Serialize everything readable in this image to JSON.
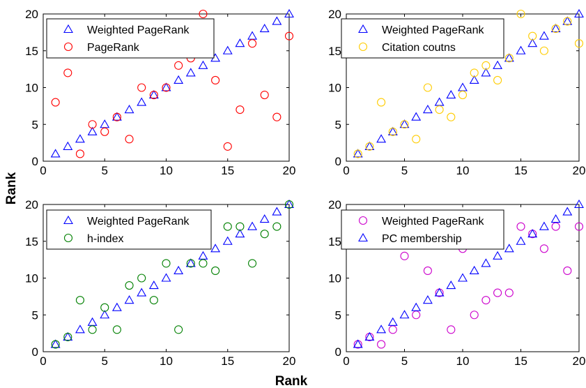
{
  "figure": {
    "xlabel": "Rank",
    "ylabel": "Rank"
  },
  "chart_data": [
    {
      "type": "scatter",
      "xlim": [
        0,
        20
      ],
      "ylim": [
        0,
        20
      ],
      "xticks": [
        "0",
        "5",
        "10",
        "15",
        "20"
      ],
      "yticks": [
        "0",
        "5",
        "10",
        "15",
        "20"
      ],
      "legend_position": "top-left",
      "series": [
        {
          "name": "Weighted PageRank",
          "marker": "triangle",
          "color": "#0000ff",
          "x": [
            1,
            2,
            3,
            4,
            5,
            6,
            7,
            8,
            9,
            10,
            11,
            12,
            13,
            14,
            15,
            16,
            17,
            18,
            19,
            20
          ],
          "y": [
            1,
            2,
            3,
            4,
            5,
            6,
            7,
            8,
            9,
            10,
            11,
            12,
            13,
            14,
            15,
            16,
            17,
            18,
            19,
            20
          ]
        },
        {
          "name": "PageRank",
          "marker": "circle",
          "color": "#ff0000",
          "x": [
            1,
            2,
            3,
            4,
            5,
            6,
            7,
            8,
            9,
            10,
            11,
            12,
            13,
            14,
            15,
            16,
            17,
            18,
            19,
            20
          ],
          "y": [
            8,
            12,
            1,
            5,
            4,
            6,
            3,
            10,
            9,
            10,
            13,
            14,
            20,
            11,
            2,
            7,
            16,
            9,
            6,
            17
          ]
        }
      ]
    },
    {
      "type": "scatter",
      "xlim": [
        0,
        20
      ],
      "ylim": [
        0,
        20
      ],
      "xticks": [
        "0",
        "5",
        "10",
        "15",
        "20"
      ],
      "yticks": [
        "0",
        "5",
        "10",
        "15",
        "20"
      ],
      "legend_position": "top-left",
      "series": [
        {
          "name": "Weighted PageRank",
          "marker": "triangle",
          "color": "#0000ff",
          "x": [
            1,
            2,
            3,
            4,
            5,
            6,
            7,
            8,
            9,
            10,
            11,
            12,
            13,
            14,
            15,
            16,
            17,
            18,
            19,
            20
          ],
          "y": [
            1,
            2,
            3,
            4,
            5,
            6,
            7,
            8,
            9,
            10,
            11,
            12,
            13,
            14,
            15,
            16,
            17,
            18,
            19,
            20
          ]
        },
        {
          "name": "Citation coutns",
          "marker": "circle",
          "color": "#ffcc00",
          "x": [
            1,
            2,
            3,
            4,
            5,
            6,
            7,
            8,
            9,
            10,
            11,
            12,
            13,
            14,
            15,
            16,
            17,
            18,
            19,
            20
          ],
          "y": [
            1,
            2,
            8,
            4,
            5,
            3,
            10,
            7,
            6,
            9,
            12,
            13,
            11,
            14,
            20,
            17,
            15,
            18,
            19,
            16
          ]
        }
      ]
    },
    {
      "type": "scatter",
      "xlim": [
        0,
        20
      ],
      "ylim": [
        0,
        20
      ],
      "xticks": [
        "0",
        "5",
        "10",
        "15",
        "20"
      ],
      "yticks": [
        "0",
        "5",
        "10",
        "15",
        "20"
      ],
      "legend_position": "top-left",
      "series": [
        {
          "name": "Weighted PageRank",
          "marker": "triangle",
          "color": "#0000ff",
          "x": [
            1,
            2,
            3,
            4,
            5,
            6,
            7,
            8,
            9,
            10,
            11,
            12,
            13,
            14,
            15,
            16,
            17,
            18,
            19,
            20
          ],
          "y": [
            1,
            2,
            3,
            4,
            5,
            6,
            7,
            8,
            9,
            10,
            11,
            12,
            13,
            14,
            15,
            16,
            17,
            18,
            19,
            20
          ]
        },
        {
          "name": "h-index",
          "marker": "circle",
          "color": "#008000",
          "x": [
            1,
            2,
            3,
            4,
            5,
            6,
            7,
            8,
            9,
            10,
            11,
            12,
            13,
            14,
            15,
            16,
            17,
            18,
            19,
            20
          ],
          "y": [
            1,
            2,
            7,
            3,
            6,
            3,
            9,
            10,
            7,
            12,
            3,
            12,
            12,
            11,
            17,
            17,
            12,
            16,
            17,
            20
          ]
        }
      ]
    },
    {
      "type": "scatter",
      "xlim": [
        0,
        20
      ],
      "ylim": [
        0,
        20
      ],
      "xticks": [
        "0",
        "5",
        "10",
        "15",
        "20"
      ],
      "yticks": [
        "0",
        "5",
        "10",
        "15",
        "20"
      ],
      "legend_position": "top-left",
      "series": [
        {
          "name": "Weighted PageRank",
          "marker": "circle",
          "color": "#cc00cc",
          "x": [
            1,
            2,
            3,
            4,
            5,
            6,
            7,
            8,
            9,
            10,
            11,
            12,
            13,
            14,
            15,
            16,
            17,
            18,
            19,
            20
          ],
          "y": [
            1,
            2,
            1,
            3,
            13,
            5,
            11,
            8,
            3,
            14,
            5,
            7,
            8,
            8,
            17,
            16,
            14,
            17,
            11,
            17
          ]
        },
        {
          "name": "PC membership",
          "marker": "triangle",
          "color": "#0000ff",
          "x": [
            1,
            2,
            3,
            4,
            5,
            6,
            7,
            8,
            9,
            10,
            11,
            12,
            13,
            14,
            15,
            16,
            17,
            18,
            19,
            20
          ],
          "y": [
            1,
            2,
            3,
            4,
            5,
            6,
            7,
            8,
            9,
            10,
            11,
            12,
            13,
            14,
            15,
            16,
            17,
            18,
            19,
            20
          ]
        }
      ]
    }
  ]
}
